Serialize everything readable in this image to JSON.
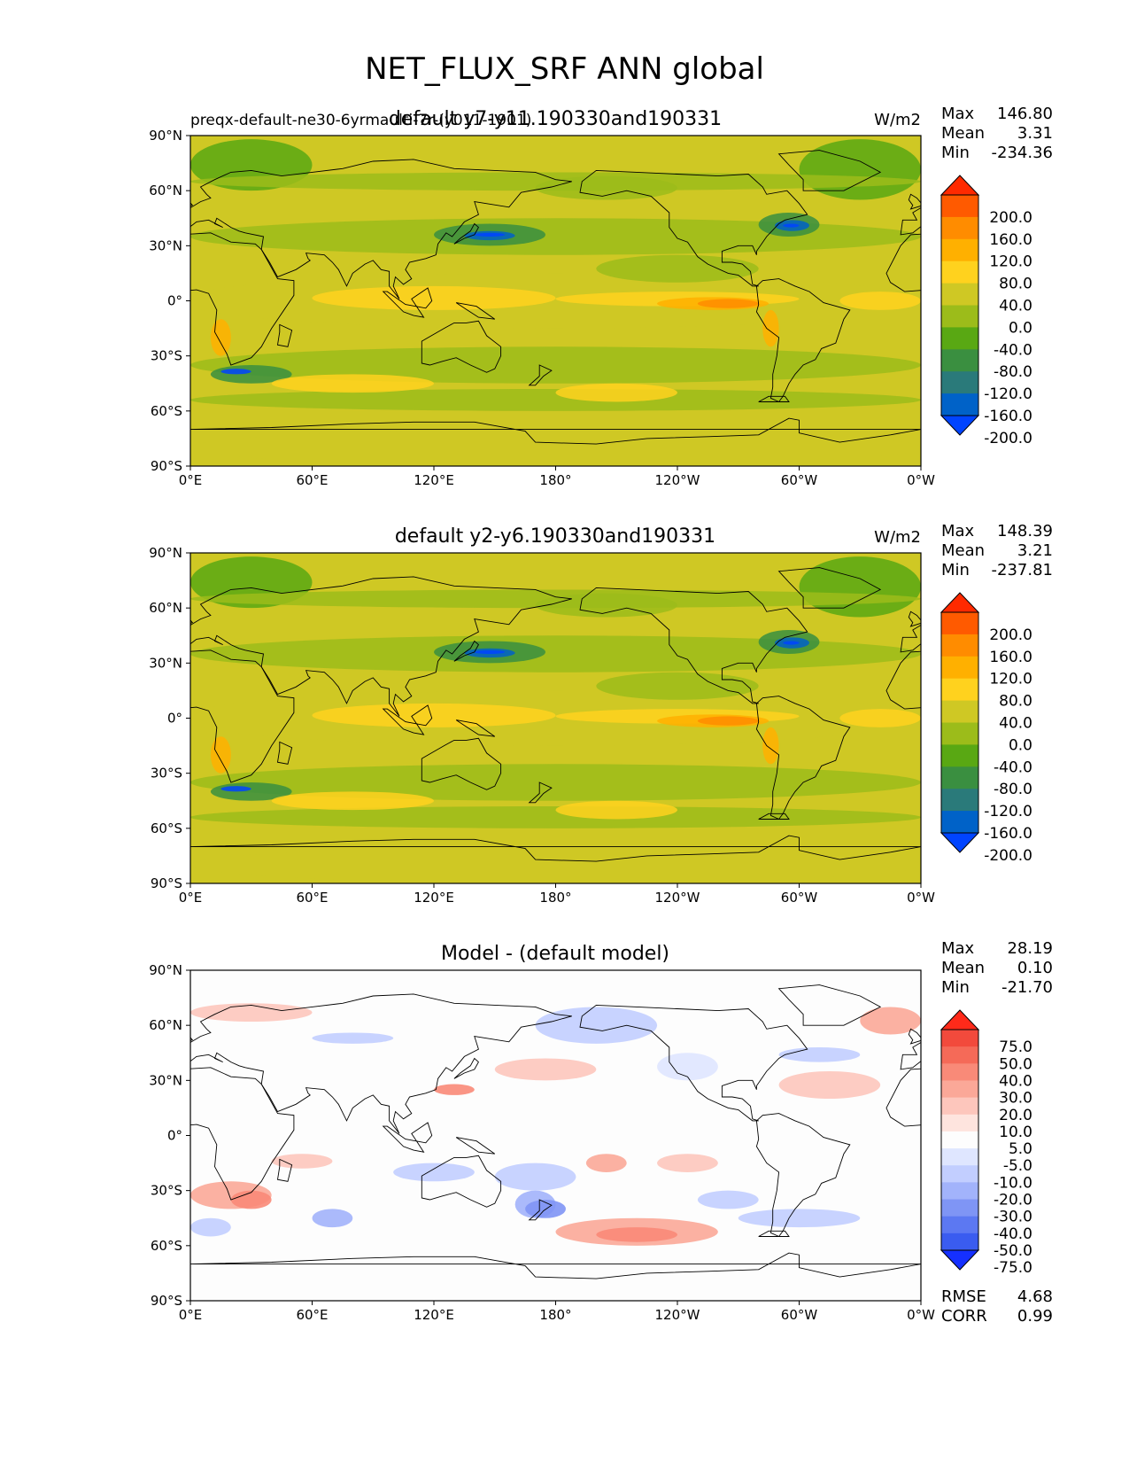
{
  "figure": {
    "title": "NET_FLUX_SRF ANN global"
  },
  "chart_data": [
    {
      "type": "heatmap",
      "panel": "test",
      "title": "default y7-y11.190330and190331",
      "subtitle_left": "preqx-default-ne30-6yrmaulti-7r-(y011-1901)",
      "units": "W/m2",
      "stats": {
        "Max": "146.80",
        "Mean": "3.31",
        "Min": "-234.36"
      },
      "x_ticks": [
        "0°E",
        "60°E",
        "120°E",
        "180°",
        "120°W",
        "60°W",
        "0°W"
      ],
      "y_ticks": [
        "90°N",
        "60°N",
        "30°N",
        "0°",
        "30°S",
        "60°S",
        "90°S"
      ],
      "xlim": [
        0,
        360
      ],
      "ylim": [
        -90,
        90
      ],
      "colorbar": {
        "levels": [
          "200.0",
          "160.0",
          "120.0",
          "80.0",
          "40.0",
          "0.0",
          "-40.0",
          "-80.0",
          "-120.0",
          "-160.0",
          "-200.0"
        ],
        "colors": [
          "#ff2a00",
          "#ff5a00",
          "#ff8c00",
          "#ffb000",
          "#ffd21e",
          "#cfc824",
          "#9cbc1a",
          "#59a813",
          "#3a8f40",
          "#2a7a7a",
          "#0062c8",
          "#0044ff"
        ],
        "extend": "both"
      }
    },
    {
      "type": "heatmap",
      "panel": "reference",
      "title": "default y2-y6.190330and190331",
      "units": "W/m2",
      "stats": {
        "Max": "148.39",
        "Mean": "3.21",
        "Min": "-237.81"
      },
      "x_ticks": [
        "0°E",
        "60°E",
        "120°E",
        "180°",
        "120°W",
        "60°W",
        "0°W"
      ],
      "y_ticks": [
        "90°N",
        "60°N",
        "30°N",
        "0°",
        "30°S",
        "60°S",
        "90°S"
      ],
      "xlim": [
        0,
        360
      ],
      "ylim": [
        -90,
        90
      ],
      "colorbar": {
        "levels": [
          "200.0",
          "160.0",
          "120.0",
          "80.0",
          "40.0",
          "0.0",
          "-40.0",
          "-80.0",
          "-120.0",
          "-160.0",
          "-200.0"
        ],
        "colors": [
          "#ff2a00",
          "#ff5a00",
          "#ff8c00",
          "#ffb000",
          "#ffd21e",
          "#cfc824",
          "#9cbc1a",
          "#59a813",
          "#3a8f40",
          "#2a7a7a",
          "#0062c8",
          "#0044ff"
        ],
        "extend": "both"
      }
    },
    {
      "type": "heatmap",
      "panel": "difference",
      "title": "Model - (default model)",
      "stats": {
        "Max": "28.19",
        "Mean": "0.10",
        "Min": "-21.70"
      },
      "metrics": {
        "RMSE": "4.68",
        "CORR": "0.99"
      },
      "x_ticks": [
        "0°E",
        "60°E",
        "120°E",
        "180°",
        "120°W",
        "60°W",
        "0°W"
      ],
      "y_ticks": [
        "90°N",
        "60°N",
        "30°N",
        "0°",
        "30°S",
        "60°S",
        "90°S"
      ],
      "xlim": [
        0,
        360
      ],
      "ylim": [
        -90,
        90
      ],
      "colorbar": {
        "levels": [
          "75.0",
          "50.0",
          "40.0",
          "30.0",
          "20.0",
          "10.0",
          "5.0",
          "-5.0",
          "-10.0",
          "-20.0",
          "-30.0",
          "-40.0",
          "-50.0",
          "-75.0"
        ],
        "colors": [
          "#ff2a1a",
          "#f24a3c",
          "#f56a58",
          "#f98a78",
          "#fba898",
          "#fdc6bc",
          "#fee4de",
          "#fdfdfd",
          "#dfe6ff",
          "#c2ceff",
          "#a2b3fb",
          "#7f95f5",
          "#5c78f2",
          "#3a5cf0",
          "#1530ff"
        ],
        "extend": "both"
      }
    }
  ]
}
